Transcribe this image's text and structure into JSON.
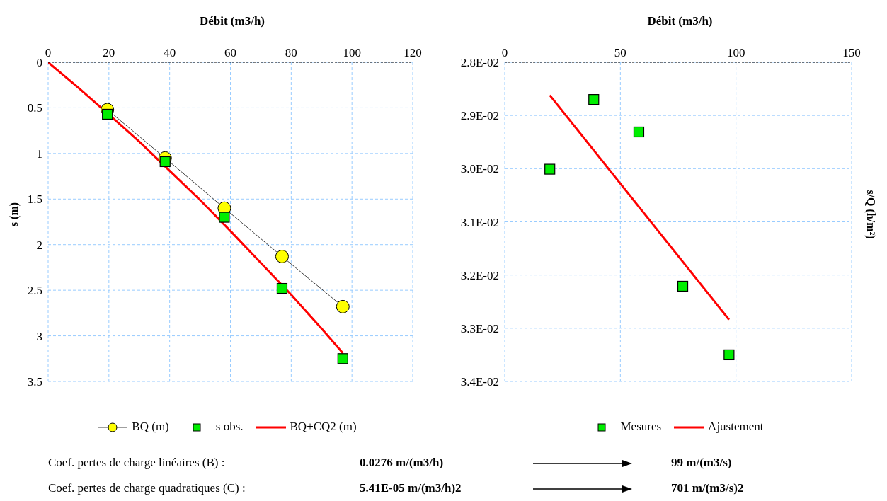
{
  "chart_data": [
    {
      "type": "line",
      "xlabel": "Débit (m3/h)",
      "ylabel": "s (m)",
      "xlim": [
        0,
        120
      ],
      "xticks": [
        0,
        20,
        40,
        60,
        80,
        100,
        120
      ],
      "ylim": [
        3.5,
        0
      ],
      "yticks": [
        0,
        0.5,
        1,
        1.5,
        2,
        2.5,
        3,
        3.5
      ],
      "grid": true,
      "legend": "bottom",
      "series": [
        {
          "name": "BQ (m)",
          "marker": "circle",
          "color": "#ffff00",
          "x": [
            19.5,
            38.5,
            58,
            77,
            97
          ],
          "values": [
            0.52,
            1.05,
            1.6,
            2.13,
            2.68
          ]
        },
        {
          "name": "s obs.",
          "type": "scatter",
          "marker": "square",
          "color": "#00ee00",
          "x": [
            19.5,
            38.5,
            58,
            77,
            97
          ],
          "values": [
            0.57,
            1.09,
            1.7,
            2.48,
            3.25
          ]
        },
        {
          "name": "BQ+CQ2 (m)",
          "marker": "none",
          "color": "#ff0000",
          "x": [
            0,
            10,
            25,
            30,
            40,
            50,
            60,
            70,
            80,
            90,
            97
          ],
          "values": [
            0,
            0.28,
            0.72,
            0.87,
            1.19,
            1.51,
            1.85,
            2.2,
            2.55,
            2.92,
            3.19
          ]
        }
      ],
      "annotations": [
        "Coef. pertes de charge linéaires (B) :",
        "0.0276 m/(m3/h)",
        "99 m/(m3/s)",
        "Coef. pertes de charge quadratiques  (C) :",
        "5.41E-05 m/(m3/h)2",
        "701  m/(m3/s)2"
      ]
    },
    {
      "type": "scatter",
      "xlabel": "Débit (m3/h)",
      "ylabel": "s/Q (h/m²)",
      "xlim": [
        0,
        150
      ],
      "xticks": [
        0,
        50,
        100,
        150
      ],
      "ylim": [
        0.034,
        0.028
      ],
      "yticks": [
        {
          "value": 0.028,
          "label": "2.8E-02"
        },
        {
          "value": 0.029,
          "label": "2.9E-02"
        },
        {
          "value": 0.03,
          "label": "3.0E-02"
        },
        {
          "value": 0.031,
          "label": "3.1E-02"
        },
        {
          "value": 0.032,
          "label": "3.2E-02"
        },
        {
          "value": 0.033,
          "label": "3.3E-02"
        },
        {
          "value": 0.034,
          "label": "3.4E-02"
        }
      ],
      "grid": true,
      "legend": "bottom",
      "series": [
        {
          "name": "Mesures",
          "marker": "square",
          "color": "#00ee00",
          "x": [
            19.5,
            38.5,
            58,
            77,
            97
          ],
          "values": [
            0.03001,
            0.0287,
            0.02931,
            0.03221,
            0.0335
          ]
        },
        {
          "name": "Ajustement",
          "type": "line",
          "marker": "none",
          "color": "#ff0000",
          "x": [
            19.5,
            97
          ],
          "values": [
            0.02862,
            0.03284
          ]
        }
      ]
    }
  ]
}
